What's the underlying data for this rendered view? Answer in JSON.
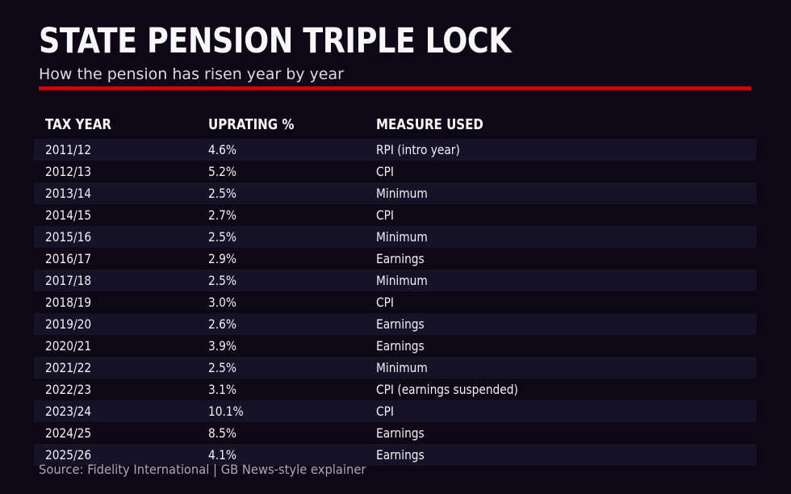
{
  "colors": {
    "background": "#0d0716",
    "row_band": "#161329",
    "accent_red": "#cc0000",
    "title_text": "#f7f6f9",
    "subtitle_text": "#dcdae2",
    "body_text": "#f2f1f5",
    "source_text": "#aba9b4"
  },
  "chart_data": {
    "type": "table",
    "title": "STATE PENSION TRIPLE LOCK",
    "subtitle": "How the pension has risen year by year",
    "columns": [
      "TAX YEAR",
      "UPRATING %",
      "MEASURE USED"
    ],
    "rows": [
      [
        "2011/12",
        "4.6%",
        "RPI (intro year)"
      ],
      [
        "2012/13",
        "5.2%",
        "CPI"
      ],
      [
        "2013/14",
        "2.5%",
        "Minimum"
      ],
      [
        "2014/15",
        "2.7%",
        "CPI"
      ],
      [
        "2015/16",
        "2.5%",
        "Minimum"
      ],
      [
        "2016/17",
        "2.9%",
        "Earnings"
      ],
      [
        "2017/18",
        "2.5%",
        "Minimum"
      ],
      [
        "2018/19",
        "3.0%",
        "CPI"
      ],
      [
        "2019/20",
        "2.6%",
        "Earnings"
      ],
      [
        "2020/21",
        "3.9%",
        "Earnings"
      ],
      [
        "2021/22",
        "2.5%",
        "Minimum"
      ],
      [
        "2022/23",
        "3.1%",
        "CPI (earnings suspended)"
      ],
      [
        "2023/24",
        "10.1%",
        "CPI"
      ],
      [
        "2024/25",
        "8.5%",
        "Earnings"
      ],
      [
        "2025/26",
        "4.1%",
        "Earnings"
      ]
    ],
    "uprating_values_percent": [
      4.6,
      5.2,
      2.5,
      2.7,
      2.5,
      2.9,
      2.5,
      3.0,
      2.6,
      3.9,
      2.5,
      3.1,
      10.1,
      8.5,
      4.1
    ],
    "striped": true,
    "first_striped_row_index": 0,
    "source": "Source: Fidelity International | GB News-style explainer"
  }
}
